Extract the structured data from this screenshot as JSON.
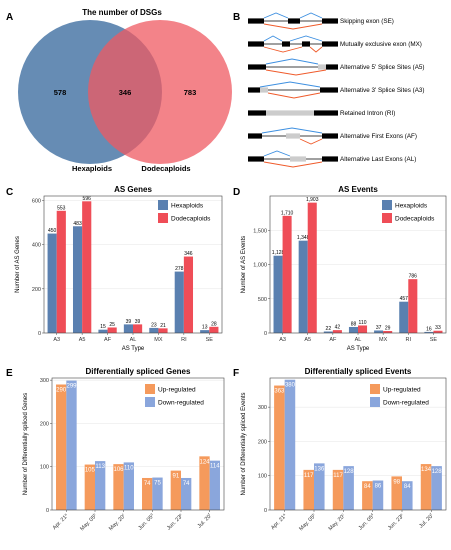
{
  "panels": {
    "A": {
      "label": "A",
      "title": "The number of DSGs",
      "venn": {
        "left_only": "578",
        "overlap": "346",
        "right_only": "783",
        "left_name": "Hexaploids",
        "right_name": "Dodecaploids",
        "left_color": "#4d79a8",
        "right_color": "#ef5a62"
      }
    },
    "B": {
      "label": "B",
      "events": [
        "Skipping exon (SE)",
        "Mutually exclusive exon (MX)",
        "Alternative 5' Splice Sites (A5)",
        "Alternative 3' Splice Sites (A3)",
        "Retained Intron (RI)",
        "Alternative First Exons (AF)",
        "Alternative Last Exons (AL)"
      ]
    },
    "C": {
      "label": "C"
    },
    "D": {
      "label": "D"
    },
    "E": {
      "label": "E"
    },
    "F": {
      "label": "F"
    }
  },
  "colors": {
    "hexaploids": "#5a80b0",
    "dodecaploids": "#ef4d57",
    "up": "#f59a5c",
    "down": "#8aa6dc",
    "panel_bg": "#ffffff",
    "grid": "#e4e4e4"
  },
  "chart_data": [
    {
      "id": "C",
      "type": "bar",
      "title": "AS Genes",
      "xlabel": "AS Type",
      "ylabel": "Number of AS Genes",
      "categories": [
        "A3",
        "A5",
        "AF",
        "AL",
        "MX",
        "RI",
        "SE"
      ],
      "series": [
        {
          "name": "Hexaploids",
          "values": [
            450,
            483,
            15,
            39,
            23,
            278,
            13
          ],
          "labels": [
            "450",
            "483",
            "15",
            "39",
            "23",
            "278",
            "13"
          ]
        },
        {
          "name": "Dodecaploids",
          "values": [
            553,
            596,
            25,
            39,
            21,
            346,
            28
          ],
          "labels": [
            "553",
            "596",
            "25",
            "39",
            "21",
            "346",
            "28"
          ]
        }
      ],
      "ylim": [
        0,
        620
      ],
      "yticks": [
        0,
        200,
        400,
        600
      ],
      "ytick_labels": [
        "0",
        "200",
        "400",
        "600"
      ],
      "legend": "top-right"
    },
    {
      "id": "D",
      "type": "bar",
      "title": "AS Events",
      "xlabel": "AS Type",
      "ylabel": "Number of AS Events",
      "categories": [
        "A3",
        "A5",
        "AF",
        "AL",
        "MX",
        "RI",
        "SE"
      ],
      "series": [
        {
          "name": "Hexaploids",
          "values": [
            1128,
            1348,
            22,
            88,
            37,
            457,
            16
          ],
          "labels": [
            "1,128",
            "1,348",
            "22",
            "88",
            "37",
            "457",
            "16"
          ]
        },
        {
          "name": "Dodecaploids",
          "values": [
            1710,
            1903,
            42,
            110,
            29,
            786,
            33
          ],
          "labels": [
            "1,710",
            "1,903",
            "42",
            "110",
            "29",
            "786",
            "33"
          ]
        }
      ],
      "ylim": [
        0,
        2000
      ],
      "yticks": [
        0,
        500,
        1000,
        1500
      ],
      "ytick_labels": [
        "0",
        "500",
        "1,000",
        "1,500"
      ],
      "legend": "top-right"
    },
    {
      "id": "E",
      "type": "bar",
      "title": "Differentially spliced Genes",
      "xlabel": "",
      "ylabel": "Number of Differentially spliced Genes",
      "categories": [
        "Apr. 21",
        "May. 05",
        "May. 20",
        "Jun. 05",
        "Jun. 23",
        "Jul. 20"
      ],
      "category_marks": [
        "a",
        "b",
        "c",
        "d",
        "e",
        "f"
      ],
      "series": [
        {
          "name": "Up-regulated",
          "values": [
            290,
            105,
            106,
            74,
            91,
            124
          ],
          "labels": [
            "290",
            "105",
            "106",
            "74",
            "91",
            "124"
          ]
        },
        {
          "name": "Down-regulated",
          "values": [
            299,
            113,
            110,
            75,
            74,
            114
          ],
          "labels": [
            "299",
            "113",
            "110",
            "75",
            "74",
            "114"
          ]
        }
      ],
      "ylim": [
        0,
        305
      ],
      "yticks": [
        0,
        100,
        200,
        300
      ],
      "ytick_labels": [
        "0",
        "100",
        "200",
        "300"
      ],
      "legend": "top-right"
    },
    {
      "id": "F",
      "type": "bar",
      "title": "Differentially spliced Events",
      "xlabel": "",
      "ylabel": "Number of Differentially spliced Events",
      "categories": [
        "Apr. 21",
        "May. 05",
        "May. 20",
        "Jun. 05",
        "Jun. 23",
        "Jul. 20"
      ],
      "category_marks": [
        "a",
        "b",
        "c",
        "d",
        "e",
        "f"
      ],
      "series": [
        {
          "name": "Up-regulated",
          "values": [
            363,
            117,
            117,
            84,
            98,
            134
          ],
          "labels": [
            "363",
            "117",
            "117",
            "84",
            "98",
            "134"
          ]
        },
        {
          "name": "Down-regulated",
          "values": [
            380,
            136,
            128,
            86,
            84,
            128
          ],
          "labels": [
            "380",
            "136",
            "128",
            "86",
            "84",
            "128"
          ]
        }
      ],
      "ylim": [
        0,
        385
      ],
      "yticks": [
        0,
        100,
        200,
        300
      ],
      "ytick_labels": [
        "0",
        "100",
        "200",
        "300"
      ],
      "legend": "top-right"
    }
  ]
}
